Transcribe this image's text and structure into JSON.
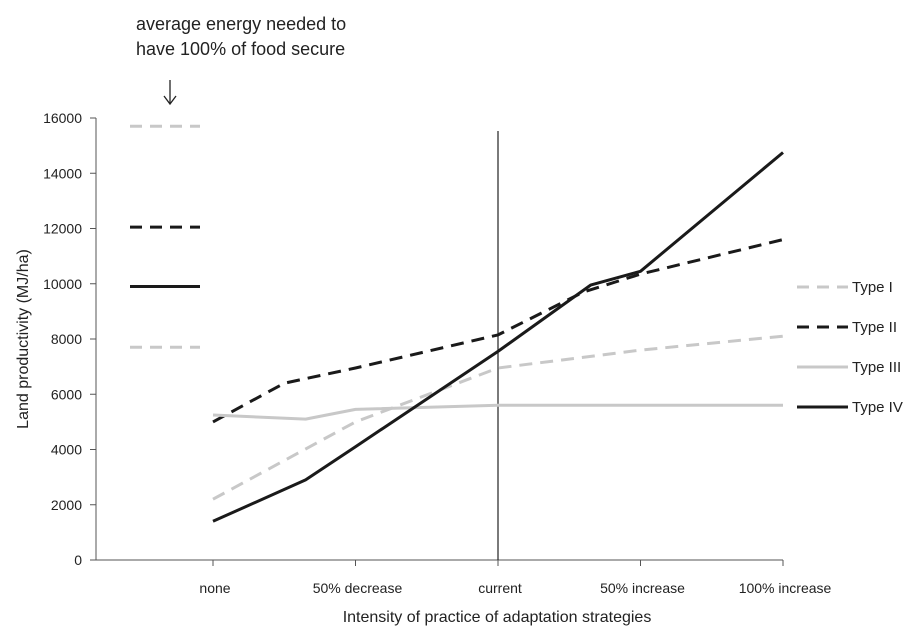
{
  "annotation": {
    "line1": "average energy needed to",
    "line2": "have 100% of food secure"
  },
  "chart_data": {
    "type": "line",
    "xlabel": "Intensity of practice of adaptation strategies",
    "ylabel": "Land productivity (MJ/ha)",
    "ylim": [
      0,
      16000
    ],
    "yticks": [
      0,
      2000,
      4000,
      6000,
      8000,
      10000,
      12000,
      14000,
      16000
    ],
    "categories": [
      "none",
      "50% decrease",
      "current",
      "50% increase",
      "100% increase"
    ],
    "series": [
      {
        "name": "Type I",
        "style": "dashed",
        "color": "#c8c8c8",
        "points": [
          [
            0,
            2200
          ],
          [
            1,
            5000
          ],
          [
            2,
            6950
          ],
          [
            3,
            7600
          ],
          [
            4,
            8100
          ]
        ],
        "food_secure_energy": 7700
      },
      {
        "name": "Type II",
        "style": "dashed",
        "color": "#1a1a1a",
        "points": [
          [
            0,
            5000
          ],
          [
            0.5,
            6400
          ],
          [
            1,
            6950
          ],
          [
            2,
            8150
          ],
          [
            2.6,
            9700
          ],
          [
            3,
            10350
          ],
          [
            4,
            11600
          ]
        ],
        "food_secure_energy": 12050
      },
      {
        "name": "Type III",
        "style": "solid",
        "color": "#c8c8c8",
        "points": [
          [
            0,
            5250
          ],
          [
            0.65,
            5100
          ],
          [
            1,
            5450
          ],
          [
            2,
            5600
          ],
          [
            3,
            5600
          ],
          [
            4,
            5600
          ]
        ]
      },
      {
        "name": "Type IV",
        "style": "solid",
        "color": "#1a1a1a",
        "points": [
          [
            0,
            1400
          ],
          [
            0.65,
            2900
          ],
          [
            1,
            4100
          ],
          [
            2,
            7550
          ],
          [
            2.65,
            9950
          ],
          [
            3,
            10450
          ],
          [
            4,
            14750
          ]
        ],
        "food_secure_energy": 9900
      }
    ],
    "extra_reference_dash": {
      "value": 15700,
      "color": "#c8c8c8",
      "style": "dashed"
    },
    "vertical_line_at": "current",
    "legend_position": "right",
    "grid": false
  }
}
